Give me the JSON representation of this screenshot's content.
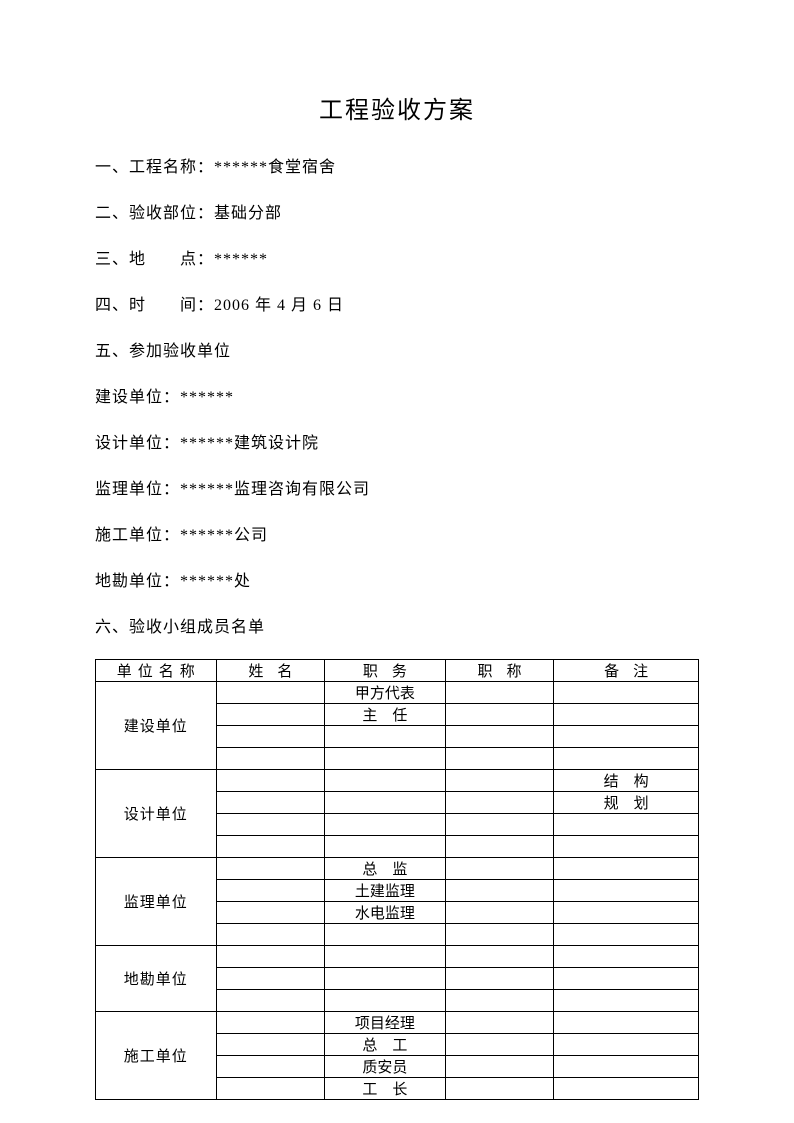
{
  "title": "工程验收方案",
  "lines": {
    "l1": "一、工程名称：******食堂宿舍",
    "l2": "二、验收部位：基础分部",
    "l3": "三、地　　点：******",
    "l4": "四、时　　间：2006 年 4 月 6 日",
    "l5": "五、参加验收单位",
    "l6": "建设单位：******",
    "l7": "设计单位：******建筑设计院",
    "l8": "监理单位：******监理咨询有限公司",
    "l9": "施工单位：******公司",
    "l10": "地勘单位：******处",
    "l11": "六、验收小组成员名单"
  },
  "table": {
    "headers": {
      "h1": "单位名称",
      "h2": "姓名",
      "h3": "职务",
      "h4": "职称",
      "h5": "备注"
    },
    "groups": [
      {
        "unit": "建设单位",
        "rows": [
          {
            "pos": "甲方代表",
            "note": ""
          },
          {
            "pos": "主　任",
            "note": ""
          },
          {
            "pos": "",
            "note": ""
          },
          {
            "pos": "",
            "note": ""
          }
        ]
      },
      {
        "unit": "设计单位",
        "rows": [
          {
            "pos": "",
            "note": "结　构"
          },
          {
            "pos": "",
            "note": "规　划"
          },
          {
            "pos": "",
            "note": ""
          },
          {
            "pos": "",
            "note": ""
          }
        ]
      },
      {
        "unit": "监理单位",
        "rows": [
          {
            "pos": "总　监",
            "note": ""
          },
          {
            "pos": "土建监理",
            "note": ""
          },
          {
            "pos": "水电监理",
            "note": ""
          },
          {
            "pos": "",
            "note": ""
          }
        ]
      },
      {
        "unit": "地勘单位",
        "rows": [
          {
            "pos": "",
            "note": ""
          },
          {
            "pos": "",
            "note": ""
          },
          {
            "pos": "",
            "note": ""
          }
        ]
      },
      {
        "unit": "施工单位",
        "rows": [
          {
            "pos": "项目经理",
            "note": ""
          },
          {
            "pos": "总　工",
            "note": ""
          },
          {
            "pos": "质安员",
            "note": ""
          },
          {
            "pos": "工　长",
            "note": ""
          }
        ]
      }
    ]
  }
}
